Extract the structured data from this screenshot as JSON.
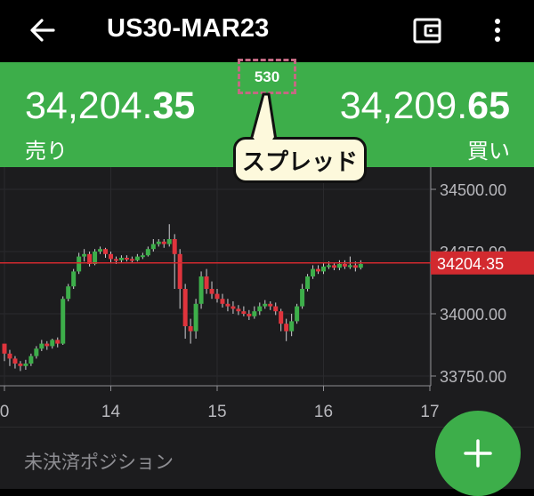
{
  "header": {
    "title": "US30-MAR23",
    "back_icon": "back-arrow-icon",
    "wallet_icon": "wallet-icon",
    "menu_icon": "more-vertical-icon"
  },
  "quote": {
    "bid_main": "34,204.",
    "bid_tail": "35",
    "ask_main": "34,209.",
    "ask_tail": "65",
    "sell_label": "売り",
    "buy_label": "買い",
    "spread": "530",
    "spread_callout": "スプレッド"
  },
  "chart": {
    "y_labels": [
      "34500.00",
      "34250.00",
      "34000.00",
      "33750.00"
    ],
    "x_labels": [
      "0",
      "14",
      "15",
      "16",
      "17"
    ],
    "current_price": "34204.35",
    "colors": {
      "up": "#3dae4a",
      "down": "#e0343d",
      "price_line": "#d22a2f"
    }
  },
  "chart_data": {
    "type": "candlestick",
    "x_ticks": [
      "0",
      "14",
      "15",
      "16",
      "17"
    ],
    "y_ticks": [
      34500,
      34250,
      34000,
      33750
    ],
    "ylim": [
      33700,
      34560
    ],
    "current_price": 34204.35,
    "candles": [
      [
        13.0,
        33880,
        33840,
        33875,
        33810
      ],
      [
        13.05,
        33840,
        33820,
        33855,
        33790
      ],
      [
        13.1,
        33820,
        33800,
        33830,
        33780
      ],
      [
        13.15,
        33800,
        33790,
        33810,
        33770
      ],
      [
        13.2,
        33790,
        33800,
        33815,
        33775
      ],
      [
        13.25,
        33800,
        33830,
        33840,
        33790
      ],
      [
        13.3,
        33830,
        33860,
        33870,
        33820
      ],
      [
        13.35,
        33860,
        33880,
        33895,
        33850
      ],
      [
        13.4,
        33880,
        33870,
        33890,
        33855
      ],
      [
        13.45,
        33870,
        33895,
        33900,
        33860
      ],
      [
        13.5,
        33895,
        33880,
        33905,
        33865
      ],
      [
        13.55,
        33880,
        34060,
        34070,
        33875
      ],
      [
        13.6,
        34060,
        34110,
        34120,
        34050
      ],
      [
        13.65,
        34110,
        34170,
        34180,
        34100
      ],
      [
        13.7,
        34170,
        34230,
        34245,
        34160
      ],
      [
        13.75,
        34230,
        34240,
        34260,
        34210
      ],
      [
        13.8,
        34240,
        34200,
        34250,
        34190
      ],
      [
        13.85,
        34200,
        34250,
        34260,
        34195
      ],
      [
        13.9,
        34250,
        34260,
        34270,
        34240
      ],
      [
        13.95,
        34260,
        34240,
        34265,
        34225
      ],
      [
        14.0,
        34240,
        34220,
        34250,
        34205
      ],
      [
        14.05,
        34220,
        34215,
        34230,
        34200
      ],
      [
        14.1,
        34215,
        34225,
        34235,
        34205
      ],
      [
        14.15,
        34225,
        34220,
        34235,
        34210
      ],
      [
        14.2,
        34220,
        34215,
        34230,
        34205
      ],
      [
        14.25,
        34215,
        34230,
        34240,
        34210
      ],
      [
        14.3,
        34230,
        34235,
        34245,
        34220
      ],
      [
        14.35,
        34235,
        34260,
        34270,
        34230
      ],
      [
        14.4,
        34260,
        34280,
        34300,
        34250
      ],
      [
        14.45,
        34280,
        34290,
        34300,
        34270
      ],
      [
        14.5,
        34290,
        34280,
        34300,
        34265
      ],
      [
        14.55,
        34280,
        34300,
        34360,
        34270
      ],
      [
        14.6,
        34300,
        34240,
        34320,
        34100
      ],
      [
        14.65,
        34240,
        34100,
        34260,
        34020
      ],
      [
        14.7,
        34100,
        33950,
        34120,
        33900
      ],
      [
        14.75,
        33950,
        33930,
        33980,
        33880
      ],
      [
        14.8,
        33930,
        34040,
        34060,
        33900
      ],
      [
        14.85,
        34040,
        34150,
        34170,
        34020
      ],
      [
        14.9,
        34150,
        34100,
        34180,
        34080
      ],
      [
        14.95,
        34100,
        34080,
        34130,
        34060
      ],
      [
        15.0,
        34080,
        34060,
        34100,
        34045
      ],
      [
        15.05,
        34060,
        34040,
        34080,
        34025
      ],
      [
        15.1,
        34040,
        34030,
        34060,
        34010
      ],
      [
        15.15,
        34030,
        34020,
        34050,
        34000
      ],
      [
        15.2,
        34020,
        34010,
        34035,
        33995
      ],
      [
        15.25,
        34010,
        34000,
        34030,
        33990
      ],
      [
        15.3,
        34000,
        33990,
        34015,
        33975
      ],
      [
        15.35,
        33990,
        34010,
        34030,
        33980
      ],
      [
        15.4,
        34010,
        34030,
        34045,
        33995
      ],
      [
        15.45,
        34030,
        34040,
        34055,
        34020
      ],
      [
        15.5,
        34040,
        34030,
        34050,
        34015
      ],
      [
        15.55,
        34030,
        34010,
        34045,
        33995
      ],
      [
        15.6,
        34010,
        33960,
        34020,
        33930
      ],
      [
        15.65,
        33960,
        33930,
        33980,
        33890
      ],
      [
        15.7,
        33930,
        33970,
        34000,
        33910
      ],
      [
        15.75,
        33970,
        34030,
        34040,
        33960
      ],
      [
        15.8,
        34030,
        34100,
        34120,
        34020
      ],
      [
        15.85,
        34100,
        34150,
        34160,
        34090
      ],
      [
        15.9,
        34150,
        34180,
        34195,
        34140
      ],
      [
        15.95,
        34180,
        34170,
        34195,
        34160
      ],
      [
        16.0,
        34170,
        34190,
        34205,
        34160
      ],
      [
        16.05,
        34190,
        34195,
        34210,
        34180
      ],
      [
        16.1,
        34195,
        34185,
        34205,
        34175
      ],
      [
        16.15,
        34185,
        34200,
        34215,
        34175
      ],
      [
        16.2,
        34200,
        34190,
        34215,
        34180
      ],
      [
        16.25,
        34190,
        34195,
        34230,
        34180
      ],
      [
        16.3,
        34195,
        34185,
        34210,
        34170
      ],
      [
        16.35,
        34185,
        34200,
        34215,
        34178
      ]
    ]
  },
  "bottom": {
    "positions_label": "未決済ポジション",
    "fab_icon": "plus-icon"
  }
}
